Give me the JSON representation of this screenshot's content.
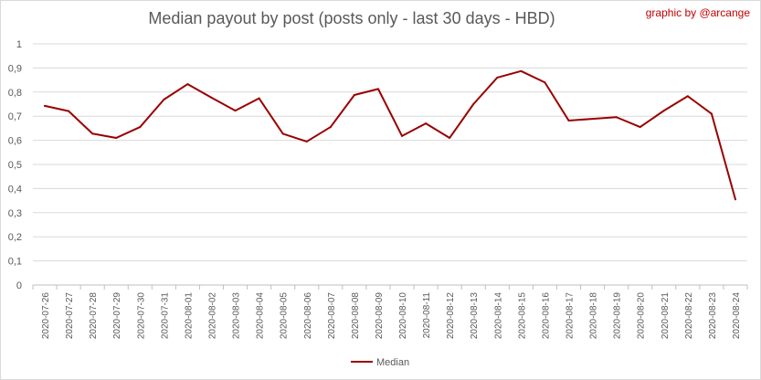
{
  "credit": "graphic by @arcange",
  "chart_data": {
    "type": "line",
    "title": "Median payout by post (posts only - last 30 days - HBD)",
    "xlabel": "",
    "ylabel": "",
    "ylim": [
      0,
      1
    ],
    "yticks": [
      "0",
      "0,1",
      "0,2",
      "0,3",
      "0,4",
      "0,5",
      "0,6",
      "0,7",
      "0,8",
      "0,9",
      "1"
    ],
    "grid": true,
    "legend_position": "bottom",
    "categories": [
      "2020-07-26",
      "2020-07-27",
      "2020-07-28",
      "2020-07-29",
      "2020-07-30",
      "2020-07-31",
      "2020-08-01",
      "2020-08-02",
      "2020-08-03",
      "2020-08-04",
      "2020-08-05",
      "2020-08-06",
      "2020-08-07",
      "2020-08-08",
      "2020-08-09",
      "2020-08-10",
      "2020-08-11",
      "2020-08-12",
      "2020-08-13",
      "2020-08-14",
      "2020-08-15",
      "2020-08-16",
      "2020-08-17",
      "2020-08-18",
      "2020-08-19",
      "2020-08-20",
      "2020-08-21",
      "2020-08-22",
      "2020-08-23",
      "2020-08-24"
    ],
    "series": [
      {
        "name": "Median",
        "color": "#990000",
        "values": [
          0.743,
          0.721,
          0.628,
          0.61,
          0.655,
          0.769,
          0.833,
          0.777,
          0.723,
          0.774,
          0.627,
          0.595,
          0.655,
          0.788,
          0.813,
          0.618,
          0.67,
          0.61,
          0.75,
          0.86,
          0.887,
          0.84,
          0.682,
          0.689,
          0.696,
          0.655,
          0.723,
          0.783,
          0.71,
          0.355
        ]
      }
    ]
  }
}
